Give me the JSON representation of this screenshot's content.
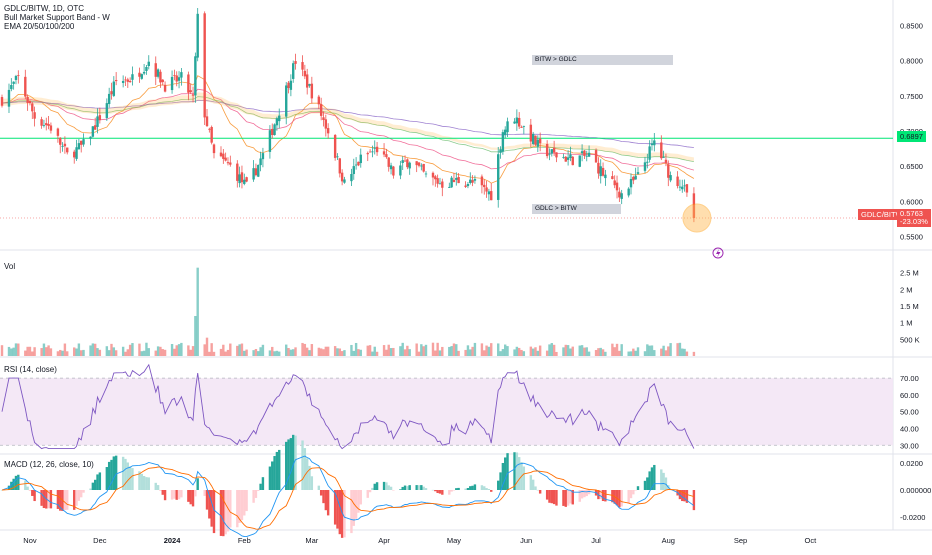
{
  "header": {
    "symbol": "GDLC/BITW, 1D, OTC",
    "indicator1": "Bull Market Support Band - W",
    "indicator2": "EMA 20/50/100/200"
  },
  "panes": {
    "volume": "Vol",
    "rsi": "RSI (14, close)",
    "macd": "MACD (12, 26, close, 10)"
  },
  "annotations": {
    "top_box": "BITW > GDLC",
    "bottom_box": "GDLC > BITW"
  },
  "price_tags": {
    "hline_value": "0.6897",
    "symbol_label": "GDLC/BITW",
    "last_price": "0.5763",
    "change": "-23.03%"
  },
  "colors": {
    "up": "#26a69a",
    "down": "#ef5350",
    "hline": "#00e676",
    "rsi_line": "#7e57c2",
    "rsi_band": "#f3e5f5",
    "macd": "#2196f3",
    "signal": "#ff6d00",
    "circle": "#ffb74d"
  },
  "axes": {
    "price_ticks": [
      "0.8500",
      "0.8000",
      "0.7500",
      "0.7000",
      "0.6500",
      "0.6000",
      "0.5500"
    ],
    "volume_ticks": [
      "2.5 M",
      "2 M",
      "1.5 M",
      "1 M",
      "500 K"
    ],
    "rsi_ticks": [
      "70.00",
      "60.00",
      "50.00",
      "40.00",
      "30.00"
    ],
    "macd_ticks": [
      "0.0200",
      "0.000000",
      "-0.0200"
    ],
    "date_labels": [
      "Nov",
      "Dec",
      "2024",
      "Feb",
      "Mar",
      "Apr",
      "May",
      "Jun",
      "Jul",
      "Aug",
      "Sep",
      "Oct"
    ]
  },
  "chart_data": {
    "type": "candlestick",
    "title": "GDLC/BITW, 1D, OTC",
    "price_range": [
      0.545,
      0.875
    ],
    "horizontal_line": 0.6897,
    "last_price": 0.5763,
    "change_pct": -23.03,
    "anchors": [
      {
        "date": "2023-10-20",
        "close": 0.745
      },
      {
        "date": "2023-10-27",
        "close": 0.775
      },
      {
        "date": "2023-11-03",
        "close": 0.72
      },
      {
        "date": "2023-11-10",
        "close": 0.705
      },
      {
        "date": "2023-11-17",
        "close": 0.665
      },
      {
        "date": "2023-11-24",
        "close": 0.68
      },
      {
        "date": "2023-12-01",
        "close": 0.72
      },
      {
        "date": "2023-12-08",
        "close": 0.77
      },
      {
        "date": "2023-12-15",
        "close": 0.775
      },
      {
        "date": "2023-12-22",
        "close": 0.8
      },
      {
        "date": "2023-12-29",
        "close": 0.765
      },
      {
        "date": "2024-01-05",
        "close": 0.775
      },
      {
        "date": "2024-01-10",
        "close": 0.745
      },
      {
        "date": "2024-01-12",
        "close": 0.86
      },
      {
        "date": "2024-01-15",
        "close": 0.725
      },
      {
        "date": "2024-01-19",
        "close": 0.665
      },
      {
        "date": "2024-01-26",
        "close": 0.65
      },
      {
        "date": "2024-02-02",
        "close": 0.62
      },
      {
        "date": "2024-02-09",
        "close": 0.665
      },
      {
        "date": "2024-02-16",
        "close": 0.73
      },
      {
        "date": "2024-02-23",
        "close": 0.8
      },
      {
        "date": "2024-03-01",
        "close": 0.755
      },
      {
        "date": "2024-03-08",
        "close": 0.7
      },
      {
        "date": "2024-03-15",
        "close": 0.625
      },
      {
        "date": "2024-03-22",
        "close": 0.66
      },
      {
        "date": "2024-03-29",
        "close": 0.675
      },
      {
        "date": "2024-04-05",
        "close": 0.64
      },
      {
        "date": "2024-04-12",
        "close": 0.66
      },
      {
        "date": "2024-04-19",
        "close": 0.635
      },
      {
        "date": "2024-04-26",
        "close": 0.625
      },
      {
        "date": "2024-05-03",
        "close": 0.63
      },
      {
        "date": "2024-05-10",
        "close": 0.625
      },
      {
        "date": "2024-05-17",
        "close": 0.61
      },
      {
        "date": "2024-05-22",
        "close": 0.7
      },
      {
        "date": "2024-05-27",
        "close": 0.72
      },
      {
        "date": "2024-05-31",
        "close": 0.705
      },
      {
        "date": "2024-06-07",
        "close": 0.675
      },
      {
        "date": "2024-06-14",
        "close": 0.665
      },
      {
        "date": "2024-06-21",
        "close": 0.66
      },
      {
        "date": "2024-06-28",
        "close": 0.665
      },
      {
        "date": "2024-07-05",
        "close": 0.635
      },
      {
        "date": "2024-07-12",
        "close": 0.61
      },
      {
        "date": "2024-07-19",
        "close": 0.635
      },
      {
        "date": "2024-07-26",
        "close": 0.685
      },
      {
        "date": "2024-08-02",
        "close": 0.635
      },
      {
        "date": "2024-08-07",
        "close": 0.625
      },
      {
        "date": "2024-08-12",
        "close": 0.5763
      }
    ]
  }
}
